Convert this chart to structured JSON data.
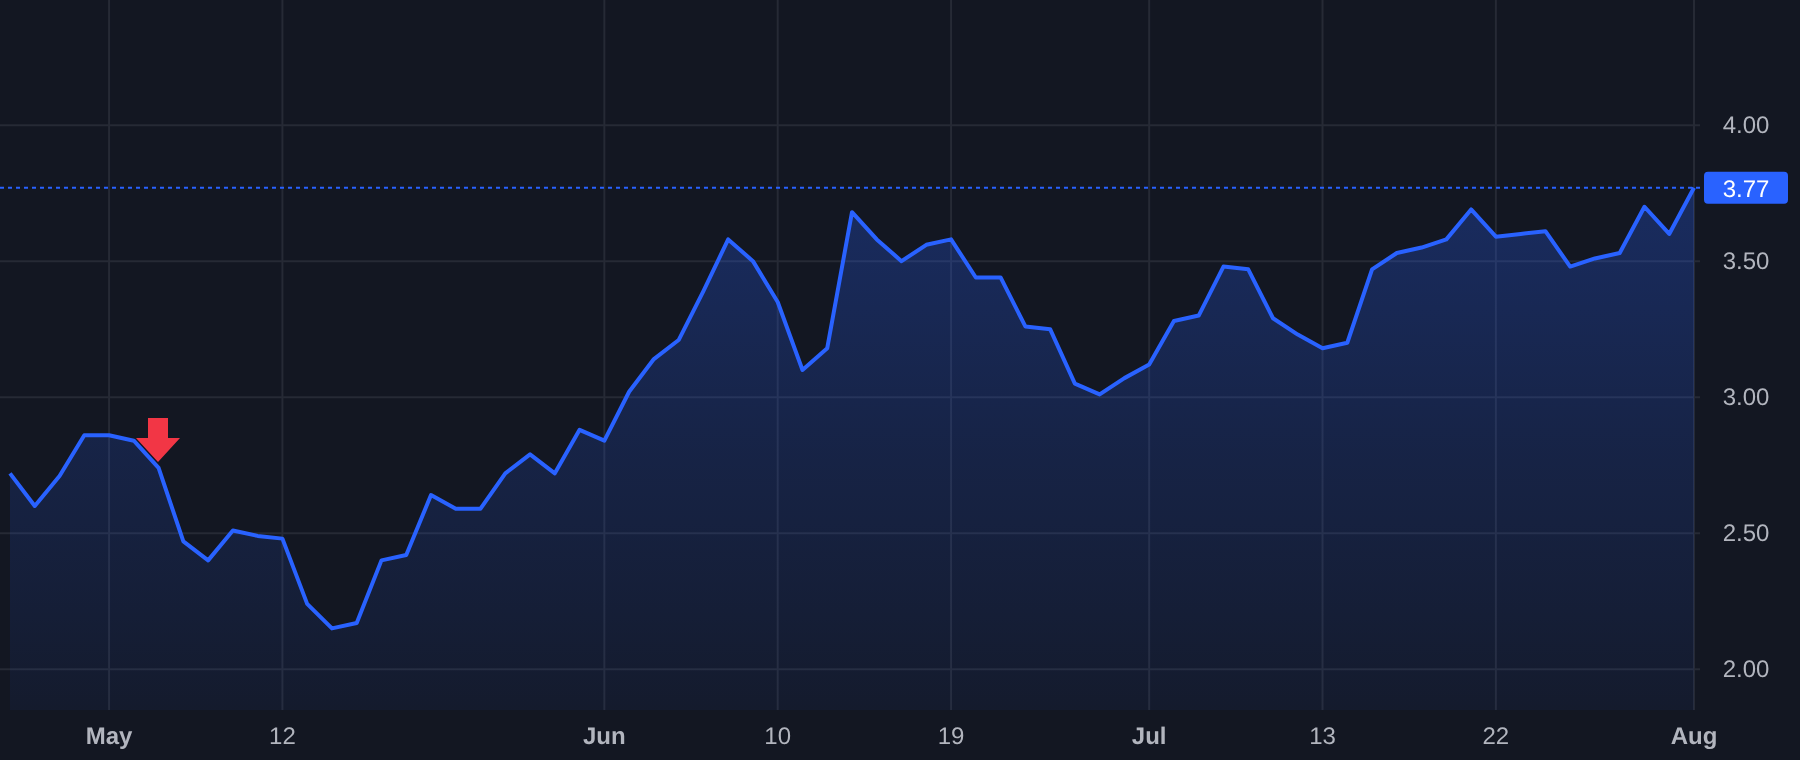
{
  "chart_data": {
    "type": "area",
    "categories": [
      null,
      null,
      null,
      null,
      "May",
      null,
      null,
      null,
      null,
      null,
      null,
      "12",
      null,
      null,
      null,
      null,
      null,
      null,
      null,
      null,
      null,
      null,
      null,
      null,
      "Jun",
      null,
      null,
      null,
      null,
      null,
      null,
      "10",
      null,
      null,
      null,
      null,
      null,
      null,
      "19",
      null,
      null,
      null,
      null,
      null,
      null,
      null,
      "Jul",
      null,
      null,
      null,
      null,
      null,
      null,
      "13",
      null,
      null,
      null,
      null,
      null,
      null,
      "22",
      null,
      null,
      null,
      null,
      null,
      null,
      null,
      "Aug"
    ],
    "series": [
      {
        "color": "#2962ff",
        "values": [
          2.72,
          2.6,
          2.71,
          2.86,
          2.86,
          2.84,
          2.74,
          2.47,
          2.4,
          2.51,
          2.49,
          2.48,
          2.24,
          2.15,
          2.17,
          2.4,
          2.42,
          2.64,
          2.59,
          2.59,
          2.72,
          2.79,
          2.72,
          2.88,
          2.84,
          3.02,
          3.14,
          3.21,
          3.39,
          3.58,
          3.5,
          3.35,
          3.1,
          3.18,
          3.68,
          3.58,
          3.5,
          3.56,
          3.58,
          3.44,
          3.44,
          3.26,
          3.25,
          3.05,
          3.01,
          3.07,
          3.12,
          3.28,
          3.3,
          3.48,
          3.47,
          3.29,
          3.23,
          3.18,
          3.2,
          3.47,
          3.53,
          3.55,
          3.58,
          3.69,
          3.59,
          3.6,
          3.61,
          3.48,
          3.51,
          3.53,
          3.7,
          3.6,
          3.77
        ]
      }
    ],
    "ylim": [
      1.85,
      4.46
    ],
    "yticks": [
      {
        "value": 2,
        "label": "2.00"
      },
      {
        "value": 2.5,
        "label": "2.50"
      },
      {
        "value": 3,
        "label": "3.00"
      },
      {
        "value": 3.5,
        "label": "3.50"
      },
      {
        "value": 4,
        "label": "4.00"
      }
    ],
    "grid": true,
    "ref_lines": [
      {
        "axis": "y",
        "value": 3.77,
        "label": "3.77",
        "color": "#2962ff",
        "line_style": "dotted"
      }
    ]
  }
}
